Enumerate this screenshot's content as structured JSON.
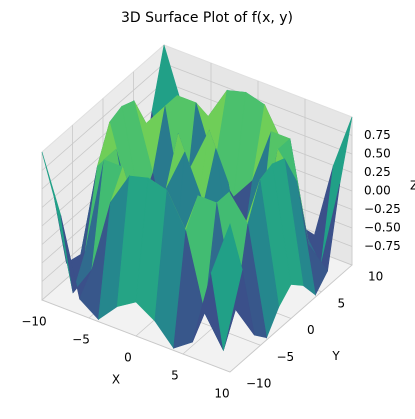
{
  "chart_data": {
    "type": "surface",
    "title": "3D Surface Plot of f(x, y)",
    "xlabel": "X",
    "ylabel": "Y",
    "zlabel": "Z",
    "x": [
      -10,
      -8,
      -6,
      -4,
      -2,
      0,
      2,
      4,
      6,
      8,
      10
    ],
    "y": [
      -10,
      -8,
      -6,
      -4,
      -2,
      0,
      2,
      4,
      6,
      8,
      10
    ],
    "z": [
      [
        1.0,
        0.24,
        -0.79,
        -0.97,
        -0.7,
        -0.54,
        -0.7,
        -0.97,
        -0.79,
        0.24,
        1.0
      ],
      [
        0.24,
        -0.95,
        -0.54,
        0.47,
        0.92,
        0.99,
        0.92,
        0.47,
        -0.54,
        -0.95,
        0.24
      ],
      [
        -0.79,
        -0.54,
        0.8,
        0.8,
        0.04,
        -0.28,
        0.04,
        0.8,
        0.8,
        -0.54,
        -0.79
      ],
      [
        -0.97,
        0.47,
        0.8,
        -0.58,
        -0.97,
        -0.76,
        -0.97,
        -0.58,
        0.8,
        0.47,
        -0.97
      ],
      [
        -0.7,
        0.92,
        0.04,
        -0.97,
        0.31,
        0.91,
        0.31,
        -0.97,
        0.04,
        0.92,
        -0.7
      ],
      [
        -0.54,
        0.99,
        -0.28,
        -0.76,
        0.91,
        0,
        0.91,
        -0.76,
        -0.28,
        0.99,
        -0.54
      ],
      [
        -0.7,
        0.92,
        0.04,
        -0.97,
        0.31,
        0.91,
        0.31,
        -0.97,
        0.04,
        0.92,
        -0.7
      ],
      [
        -0.97,
        0.47,
        0.8,
        -0.58,
        -0.97,
        -0.76,
        -0.97,
        -0.58,
        0.8,
        0.47,
        -0.97
      ],
      [
        -0.79,
        -0.54,
        0.8,
        0.8,
        0.04,
        -0.28,
        0.04,
        0.8,
        0.8,
        -0.54,
        -0.79
      ],
      [
        0.24,
        -0.95,
        -0.54,
        0.47,
        0.92,
        0.99,
        0.92,
        0.47,
        -0.54,
        -0.95,
        0.24
      ],
      [
        1.0,
        0.24,
        -0.79,
        -0.97,
        -0.7,
        -0.54,
        -0.7,
        -0.97,
        -0.79,
        0.24,
        1.0
      ]
    ],
    "colormap": "viridis",
    "xlim": [
      -10,
      10
    ],
    "ylim": [
      -10,
      10
    ],
    "zlim": [
      -1,
      1
    ],
    "xticks": [
      {
        "value": -10,
        "label": "−10"
      },
      {
        "value": -5,
        "label": "−5"
      },
      0,
      5,
      10
    ],
    "yticks": [
      {
        "value": -10,
        "label": "−10"
      },
      {
        "value": -5,
        "label": "−5"
      },
      0,
      5,
      10
    ],
    "zticks": [
      {
        "value": -0.75,
        "label": "−0.75"
      },
      {
        "value": -0.5,
        "label": "−0.50"
      },
      {
        "value": -0.25,
        "label": "−0.25"
      },
      {
        "value": 0,
        "label": "0.00"
      },
      {
        "value": 0.25,
        "label": "0.25"
      },
      {
        "value": 0.5,
        "label": "0.50"
      },
      {
        "value": 0.75,
        "label": "0.75"
      }
    ],
    "grid": true
  }
}
